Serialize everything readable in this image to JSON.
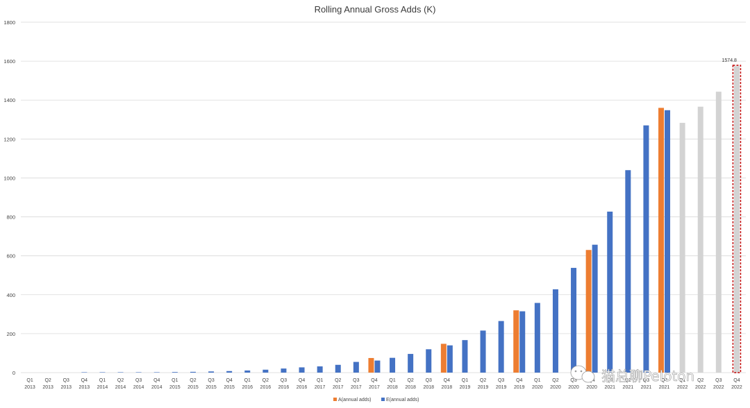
{
  "chart_data": {
    "type": "bar",
    "title": "Rolling Annual Gross Adds (K)",
    "ylim": [
      0,
      1800
    ],
    "yticks": [
      0,
      200,
      400,
      600,
      800,
      1000,
      1200,
      1400,
      1600,
      1800
    ],
    "grid": true,
    "legend_position": "bottom-center",
    "colors": {
      "A": "#ED7D31",
      "E": "#4472C4",
      "forecast": "#D3D3D3",
      "highlight": "#C00000"
    },
    "categories": [
      [
        "Q1",
        "2013"
      ],
      [
        "Q2",
        "2013"
      ],
      [
        "Q3",
        "2013"
      ],
      [
        "Q4",
        "2013"
      ],
      [
        "Q1",
        "2014"
      ],
      [
        "Q2",
        "2014"
      ],
      [
        "Q3",
        "2014"
      ],
      [
        "Q4",
        "2014"
      ],
      [
        "Q1",
        "2015"
      ],
      [
        "Q2",
        "2015"
      ],
      [
        "Q3",
        "2015"
      ],
      [
        "Q4",
        "2015"
      ],
      [
        "Q1",
        "2016"
      ],
      [
        "Q2",
        "2016"
      ],
      [
        "Q3",
        "2016"
      ],
      [
        "Q4",
        "2016"
      ],
      [
        "Q1",
        "2017"
      ],
      [
        "Q2",
        "2017"
      ],
      [
        "Q3",
        "2017"
      ],
      [
        "Q4",
        "2017"
      ],
      [
        "Q1",
        "2018"
      ],
      [
        "Q2",
        "2018"
      ],
      [
        "Q3",
        "2018"
      ],
      [
        "Q4",
        "2018"
      ],
      [
        "Q1",
        "2019"
      ],
      [
        "Q2",
        "2019"
      ],
      [
        "Q3",
        "2019"
      ],
      [
        "Q4",
        "2019"
      ],
      [
        "Q1",
        "2020"
      ],
      [
        "Q2",
        "2020"
      ],
      [
        "Q3",
        "2020"
      ],
      [
        "Q4",
        "2020"
      ],
      [
        "Q1",
        "2021"
      ],
      [
        "Q2",
        "2021"
      ],
      [
        "Q3",
        "2021"
      ],
      [
        "Q4",
        "2021"
      ],
      [
        "Q1",
        "2022"
      ],
      [
        "Q2",
        "2022"
      ],
      [
        "Q3",
        "2022"
      ],
      [
        "Q4",
        "2022"
      ]
    ],
    "series": [
      {
        "name": "A(annual adds)",
        "key": "A",
        "values": [
          null,
          null,
          null,
          null,
          null,
          null,
          null,
          null,
          null,
          null,
          null,
          null,
          null,
          null,
          null,
          null,
          null,
          null,
          null,
          75,
          null,
          null,
          null,
          148,
          null,
          null,
          null,
          320,
          null,
          null,
          null,
          630,
          null,
          null,
          null,
          1360,
          null,
          null,
          null,
          null
        ]
      },
      {
        "name": "E(annual adds)",
        "key": "E",
        "values": [
          null,
          null,
          null,
          2,
          2,
          2,
          2,
          2,
          3,
          4,
          6,
          8,
          11,
          15,
          21,
          27,
          32,
          40,
          55,
          62,
          76,
          96,
          120,
          140,
          167,
          216,
          265,
          315,
          358,
          428,
          538,
          657,
          827,
          1040,
          1270,
          1348,
          null,
          null,
          null,
          null
        ]
      },
      {
        "key": "forecast",
        "values": [
          null,
          null,
          null,
          null,
          null,
          null,
          null,
          null,
          null,
          null,
          null,
          null,
          null,
          null,
          null,
          null,
          null,
          null,
          null,
          null,
          null,
          null,
          null,
          null,
          null,
          null,
          null,
          null,
          null,
          null,
          null,
          null,
          null,
          null,
          null,
          null,
          1283,
          1366,
          1443,
          1574.8
        ]
      }
    ],
    "annotations": [
      {
        "category_index": 39,
        "text": "1574.8"
      }
    ],
    "watermark": "猫总聊Peloton"
  }
}
